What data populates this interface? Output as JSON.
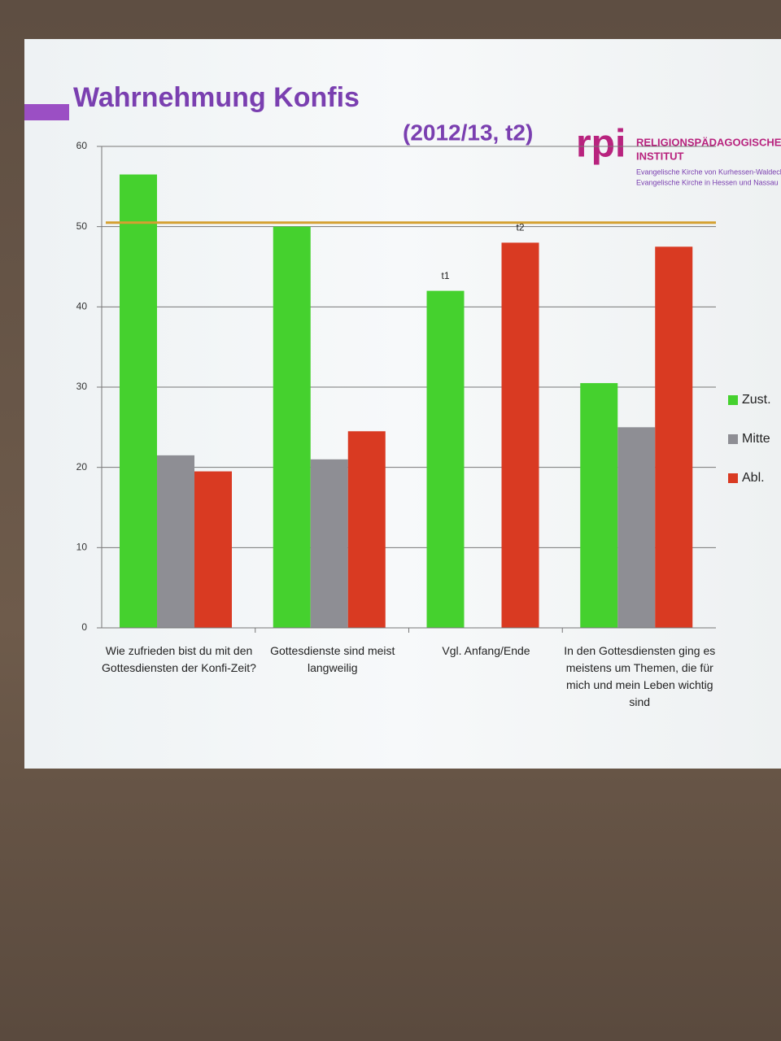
{
  "chart_data": {
    "type": "bar",
    "title": "Wahrnehmung Konfis",
    "subtitle": "(2012/13, t2)",
    "categories": [
      "Wie zufrieden bist du mit den Gottesdiensten der Konfi-Zeit?",
      "Gottesdienste sind meist langweilig",
      "Vgl. Anfang/Ende",
      "In den Gottesdiensten ging es meistens um Themen, die für mich und mein Leben wichtig sind"
    ],
    "series": [
      {
        "name": "Zust.",
        "color": "#45d12e",
        "values": [
          56.5,
          50,
          42,
          30.5
        ]
      },
      {
        "name": "Mitte",
        "color": "#8e8e94",
        "values": [
          21.5,
          21,
          null,
          25
        ]
      },
      {
        "name": "Abl.",
        "color": "#d93a22",
        "values": [
          19.5,
          24.5,
          48,
          47.5
        ]
      }
    ],
    "annotations": [
      "t1",
      "t2"
    ],
    "reference_line": {
      "value": 50.5,
      "color": "#d4a030"
    },
    "ylim": [
      0,
      60
    ],
    "yticks": [
      0,
      10,
      20,
      30,
      40,
      50,
      60
    ],
    "grid": true,
    "legend": "right"
  },
  "logo": {
    "mark": "rpi",
    "name_lines": [
      "RELIGIONSPÄDAGOGISCHES",
      "INSTITUT"
    ],
    "church_lines": [
      "Evangelische Kirche von Kurhessen-Waldeck",
      "Evangelische Kirche in Hessen und Nassau"
    ]
  }
}
